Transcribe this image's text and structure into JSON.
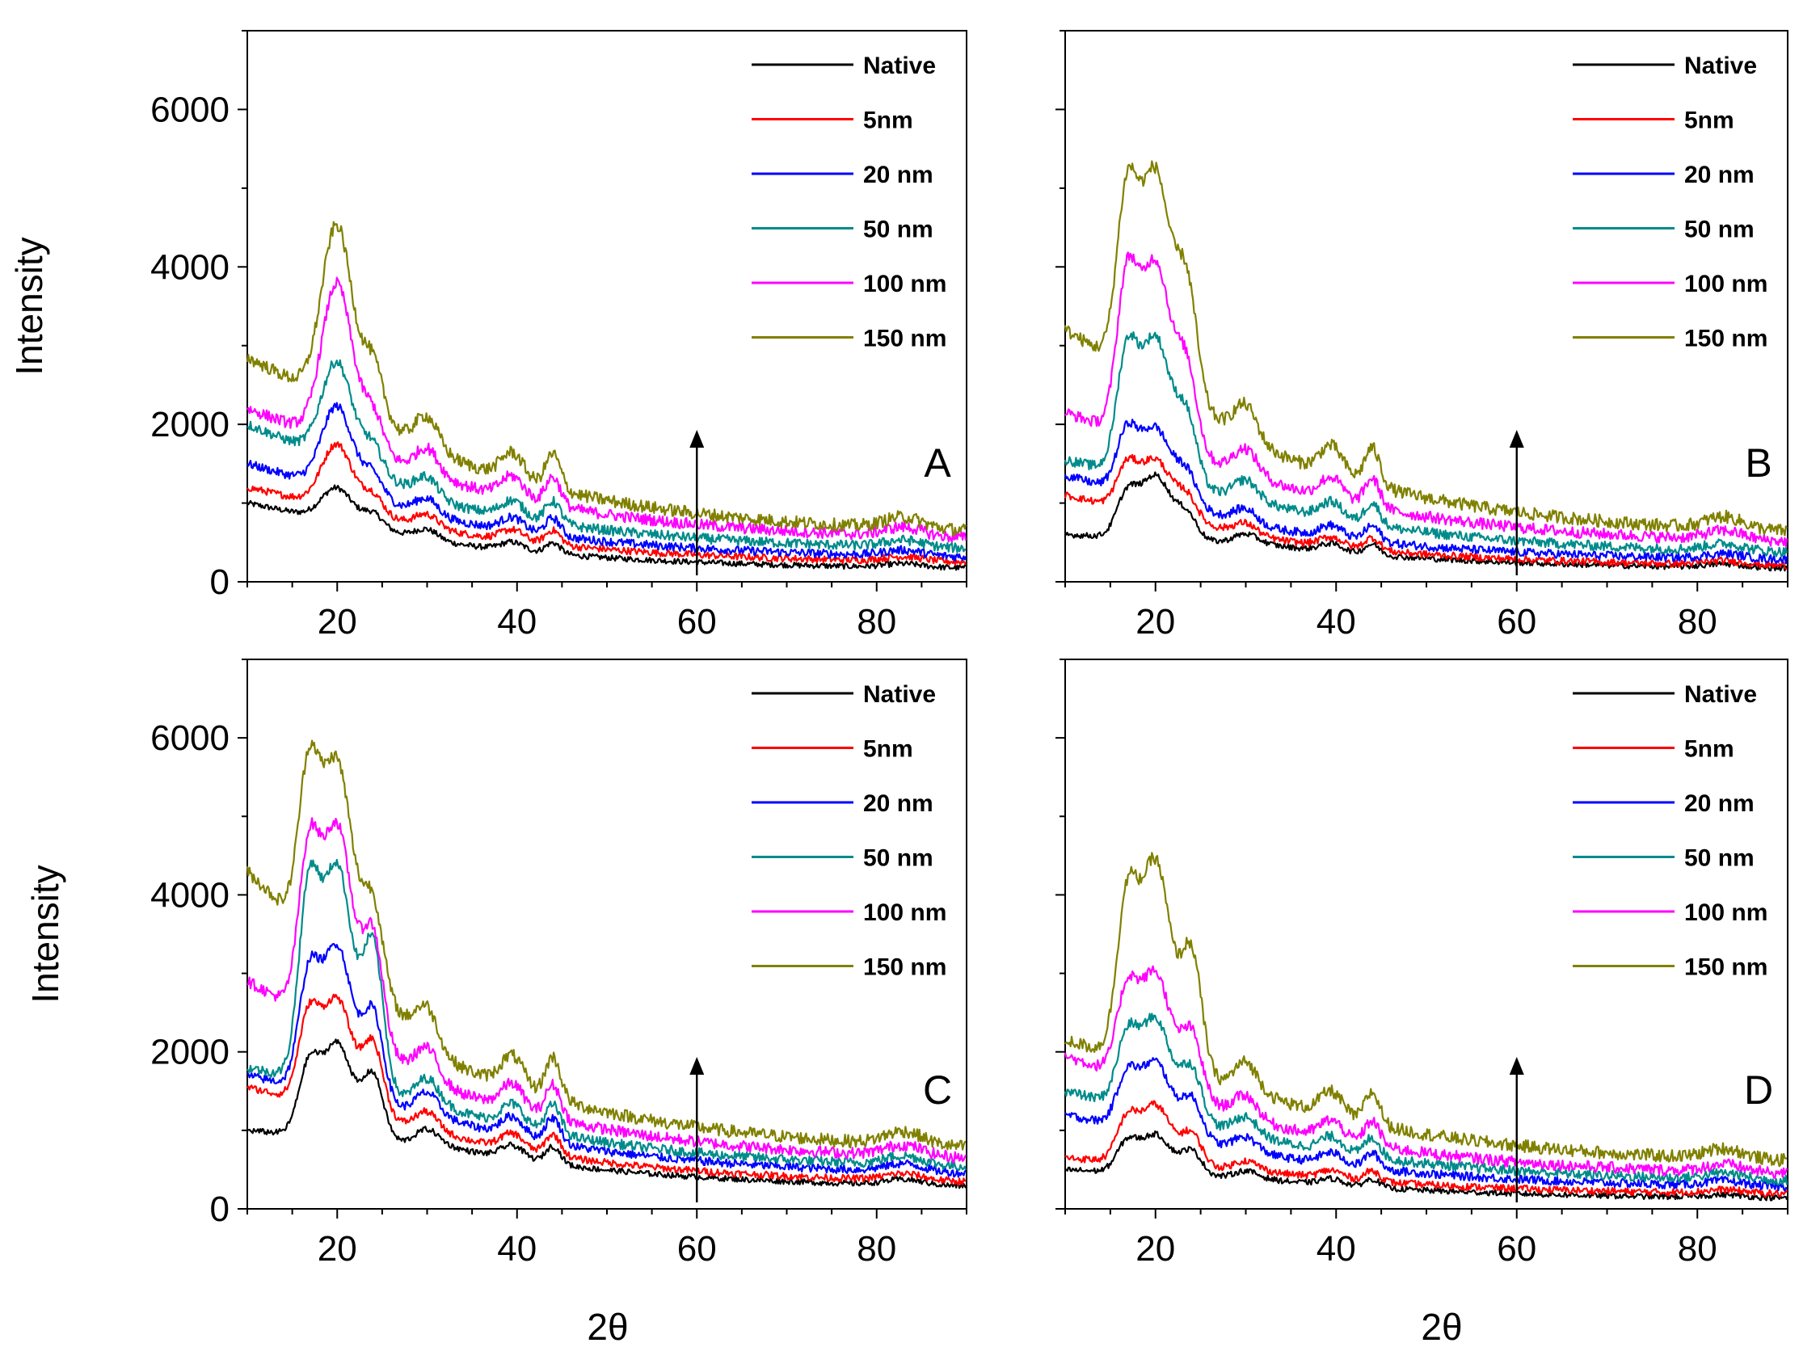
{
  "chart_data": [
    {
      "type": "line",
      "panel": "A",
      "xlabel": "2θ",
      "ylabel": "Intensity",
      "xlim": [
        10,
        90
      ],
      "ylim": [
        0,
        7000
      ],
      "xticks": [
        20,
        40,
        60,
        80
      ],
      "yticks": [
        0,
        2000,
        4000,
        6000
      ],
      "grid": false,
      "legend_position": "top-right",
      "arrow_x": 60,
      "series": [
        {
          "name": "Native",
          "color": "#000000",
          "base": 1000,
          "peaks": [
            [
              20,
              420
            ],
            [
              24,
              180
            ]
          ],
          "tail_start": 500,
          "tail_end": 150
        },
        {
          "name": "5nm",
          "color": "#ff0000",
          "base": 1200,
          "peaks": [
            [
              20,
              800
            ],
            [
              24,
              250
            ]
          ],
          "tail_start": 650,
          "tail_end": 220
        },
        {
          "name": "20 nm",
          "color": "#0000ff",
          "base": 1500,
          "peaks": [
            [
              20,
              1050
            ],
            [
              24,
              300
            ]
          ],
          "tail_start": 800,
          "tail_end": 280
        },
        {
          "name": "50 nm",
          "color": "#008b8b",
          "base": 2000,
          "peaks": [
            [
              20,
              1250
            ],
            [
              24,
              350
            ]
          ],
          "tail_start": 1000,
          "tail_end": 380
        },
        {
          "name": "100 nm",
          "color": "#ff00ff",
          "base": 2200,
          "peaks": [
            [
              20,
              2000
            ],
            [
              24,
              500
            ]
          ],
          "tail_start": 1300,
          "tail_end": 500
        },
        {
          "name": "150 nm",
          "color": "#808000",
          "base": 2850,
          "peaks": [
            [
              20,
              2250
            ],
            [
              24,
              700
            ]
          ],
          "tail_start": 1600,
          "tail_end": 580
        }
      ]
    },
    {
      "type": "line",
      "panel": "B",
      "xlabel": "2θ",
      "ylabel": "",
      "xlim": [
        10,
        90
      ],
      "ylim": [
        0,
        7000
      ],
      "xticks": [
        20,
        40,
        60,
        80
      ],
      "yticks": [
        0,
        2000,
        4000,
        6000
      ],
      "grid": false,
      "legend_position": "top-right",
      "arrow_x": 60,
      "series": [
        {
          "name": "Native",
          "color": "#000000",
          "base": 600,
          "peaks": [
            [
              16.8,
              500
            ],
            [
              20,
              800
            ],
            [
              23.5,
              300
            ]
          ],
          "tail_start": 480,
          "tail_end": 150
        },
        {
          "name": "5nm",
          "color": "#ff0000",
          "base": 1100,
          "peaks": [
            [
              16.8,
              500
            ],
            [
              20,
              700
            ],
            [
              23.5,
              300
            ]
          ],
          "tail_start": 560,
          "tail_end": 180
        },
        {
          "name": "20 nm",
          "color": "#0000ff",
          "base": 1350,
          "peaks": [
            [
              16.8,
              700
            ],
            [
              20,
              900
            ],
            [
              23.5,
              400
            ]
          ],
          "tail_start": 700,
          "tail_end": 250
        },
        {
          "name": "50 nm",
          "color": "#008b8b",
          "base": 1550,
          "peaks": [
            [
              16.8,
              1400
            ],
            [
              20,
              1800
            ],
            [
              23.5,
              800
            ]
          ],
          "tail_start": 1000,
          "tail_end": 330
        },
        {
          "name": "100 nm",
          "color": "#ff00ff",
          "base": 2150,
          "peaks": [
            [
              16.8,
              1800
            ],
            [
              20,
              2300
            ],
            [
              23.5,
              1000
            ]
          ],
          "tail_start": 1300,
          "tail_end": 450
        },
        {
          "name": "150 nm",
          "color": "#808000",
          "base": 3200,
          "peaks": [
            [
              16.8,
              2000
            ],
            [
              20,
              2700
            ],
            [
              23.5,
              1400
            ]
          ],
          "tail_start": 1700,
          "tail_end": 560
        }
      ]
    },
    {
      "type": "line",
      "panel": "C",
      "xlabel": "2θ",
      "ylabel": "Intensity",
      "xlim": [
        10,
        90
      ],
      "ylim": [
        0,
        7000
      ],
      "xticks": [
        20,
        40,
        60,
        80
      ],
      "yticks": [
        0,
        2000,
        4000,
        6000
      ],
      "grid": false,
      "legend_position": "top-right",
      "arrow_x": 60,
      "series": [
        {
          "name": "Native",
          "color": "#000000",
          "base": 1000,
          "peaks": [
            [
              16.8,
              800
            ],
            [
              20,
              1200
            ],
            [
              24,
              800
            ]
          ],
          "tail_start": 800,
          "tail_end": 250
        },
        {
          "name": "5nm",
          "color": "#ff0000",
          "base": 1550,
          "peaks": [
            [
              16.8,
              1000
            ],
            [
              20,
              1400
            ],
            [
              24,
              900
            ]
          ],
          "tail_start": 950,
          "tail_end": 300
        },
        {
          "name": "20 nm",
          "color": "#0000ff",
          "base": 1700,
          "peaks": [
            [
              16.8,
              1300
            ],
            [
              20,
              1900
            ],
            [
              24,
              1100
            ]
          ],
          "tail_start": 1150,
          "tail_end": 400
        },
        {
          "name": "50 nm",
          "color": "#008b8b",
          "base": 1800,
          "peaks": [
            [
              16.8,
              2200
            ],
            [
              20,
              2800
            ],
            [
              24,
              1800
            ]
          ],
          "tail_start": 1300,
          "tail_end": 480
        },
        {
          "name": "100 nm",
          "color": "#ff00ff",
          "base": 2900,
          "peaks": [
            [
              16.8,
              1900
            ],
            [
              20,
              2600
            ],
            [
              24,
              1400
            ]
          ],
          "tail_start": 1550,
          "tail_end": 580
        },
        {
          "name": "150 nm",
          "color": "#808000",
          "base": 4300,
          "peaks": [
            [
              16.8,
              1900
            ],
            [
              20,
              2500
            ],
            [
              24,
              1100
            ]
          ],
          "tail_start": 1900,
          "tail_end": 700
        }
      ]
    },
    {
      "type": "line",
      "panel": "D",
      "xlabel": "2θ",
      "ylabel": "",
      "xlim": [
        10,
        90
      ],
      "ylim": [
        0,
        7000
      ],
      "xticks": [
        20,
        40,
        60,
        80
      ],
      "yticks": [
        0,
        2000,
        4000,
        6000
      ],
      "grid": false,
      "legend_position": "top-right",
      "arrow_x": 60,
      "series": [
        {
          "name": "Native",
          "color": "#000000",
          "base": 500,
          "peaks": [
            [
              16.8,
              350
            ],
            [
              20,
              500
            ],
            [
              24,
              300
            ]
          ],
          "tail_start": 380,
          "tail_end": 120
        },
        {
          "name": "5nm",
          "color": "#ff0000",
          "base": 650,
          "peaks": [
            [
              16.8,
              500
            ],
            [
              20,
              750
            ],
            [
              24,
              400
            ]
          ],
          "tail_start": 480,
          "tail_end": 170
        },
        {
          "name": "20 nm",
          "color": "#0000ff",
          "base": 1200,
          "peaks": [
            [
              16.8,
              600
            ],
            [
              20,
              900
            ],
            [
              24,
              500
            ]
          ],
          "tail_start": 700,
          "tail_end": 250
        },
        {
          "name": "50 nm",
          "color": "#008b8b",
          "base": 1500,
          "peaks": [
            [
              16.8,
              800
            ],
            [
              20,
              1200
            ],
            [
              24,
              650
            ]
          ],
          "tail_start": 900,
          "tail_end": 320
        },
        {
          "name": "100 nm",
          "color": "#ff00ff",
          "base": 1950,
          "peaks": [
            [
              16.8,
              1000
            ],
            [
              20,
              1450
            ],
            [
              24,
              800
            ]
          ],
          "tail_start": 1100,
          "tail_end": 400
        },
        {
          "name": "150 nm",
          "color": "#808000",
          "base": 2150,
          "peaks": [
            [
              16.8,
              1800
            ],
            [
              20,
              2600
            ],
            [
              24,
              1500
            ]
          ],
          "tail_start": 1450,
          "tail_end": 550
        }
      ]
    }
  ]
}
